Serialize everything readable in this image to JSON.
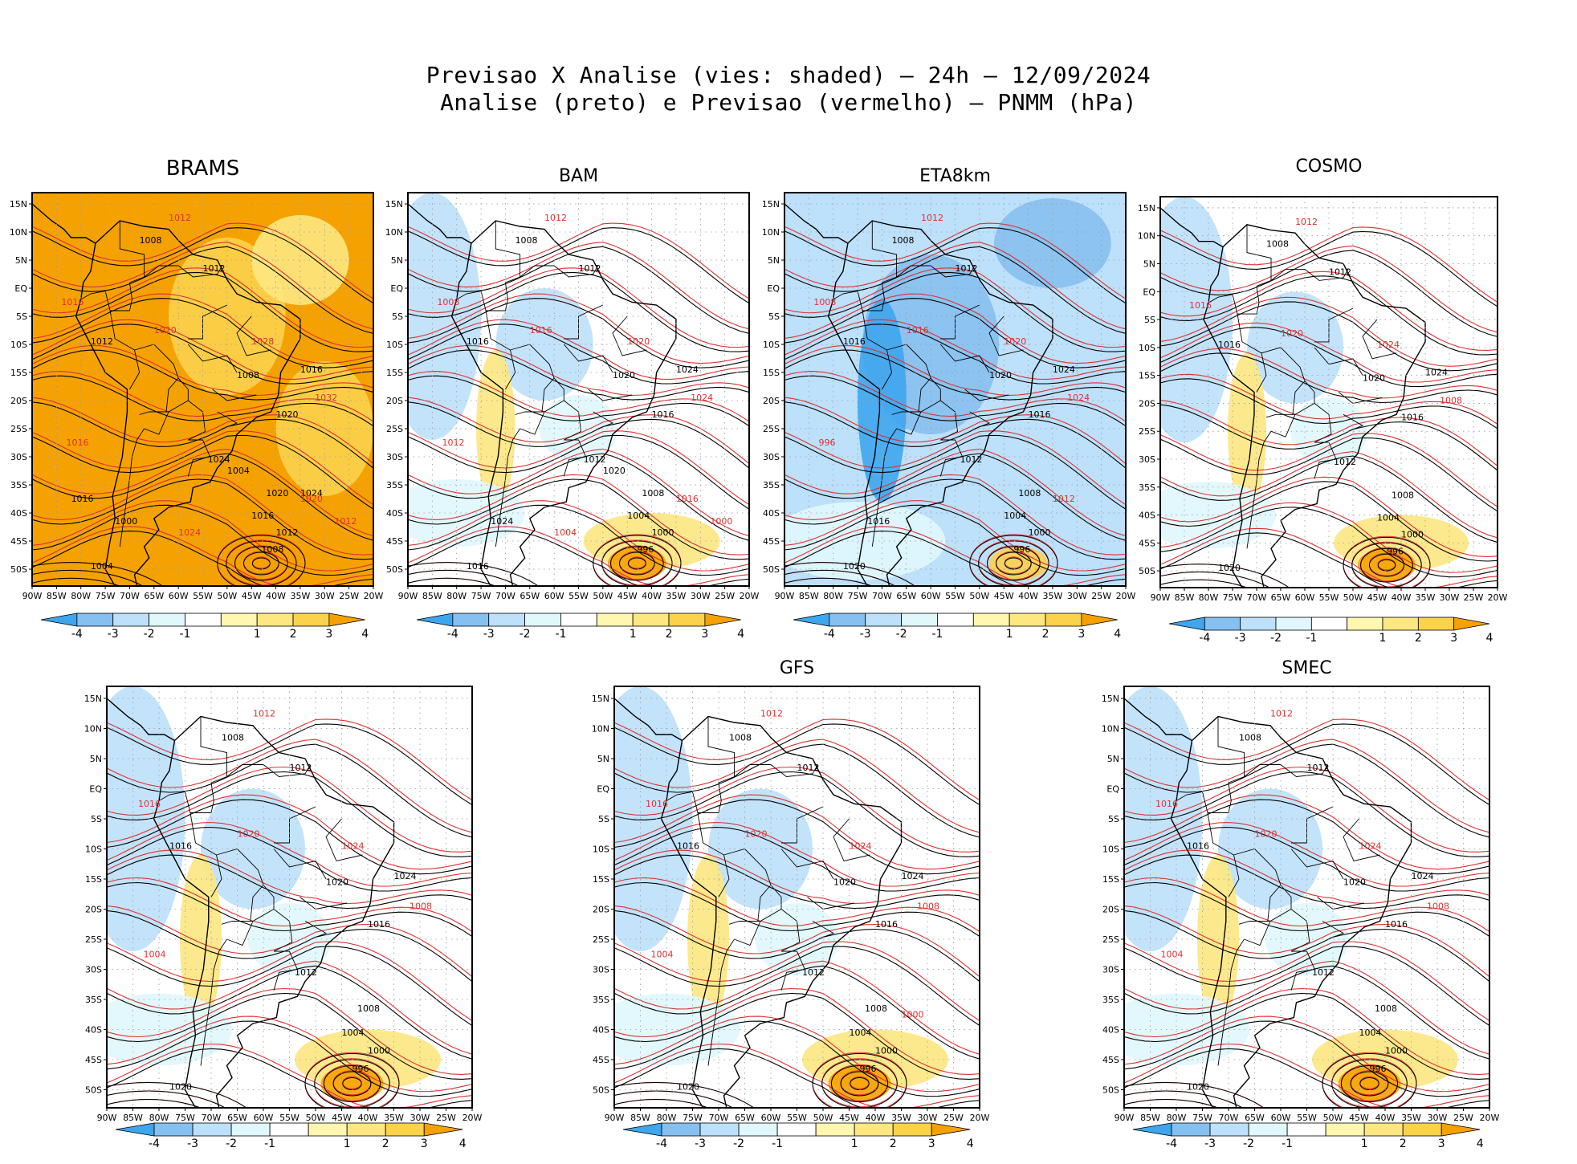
{
  "figure": {
    "title_line1": "Previsao X Analise (vies: shaded) – 24h – 12/09/2024",
    "title_line2": "Analise (preto) e Previsao (vermelho) – PNMM (hPa)"
  },
  "colors": {
    "analysis_contour": "#000000",
    "forecast_contour": "#e03030",
    "bias_neg4": "#3ea6ee",
    "bias_neg3": "#86c0f0",
    "bias_neg2": "#bde0fb",
    "bias_neg1": "#e0f7fc",
    "bias_zero": "#ffffff",
    "bias_pos1": "#fff6b0",
    "bias_pos2": "#fde781",
    "bias_pos3": "#fbd24c",
    "bias_pos4": "#f5a200"
  },
  "axes": {
    "lon_ticks": [
      "90W",
      "85W",
      "80W",
      "75W",
      "70W",
      "65W",
      "60W",
      "55W",
      "50W",
      "45W",
      "40W",
      "35W",
      "30W",
      "25W",
      "20W"
    ],
    "lat_ticks": [
      "15N",
      "10N",
      "5N",
      "EQ",
      "5S",
      "10S",
      "15S",
      "20S",
      "25S",
      "30S",
      "35S",
      "40S",
      "45S",
      "50S"
    ]
  },
  "colorbar": {
    "labels": [
      "-4",
      "-3",
      "-2",
      "-1",
      "1",
      "2",
      "3",
      "4"
    ]
  },
  "panels": [
    {
      "title": "BRAMS",
      "overall_bias": "positive",
      "contour_labels_black": [
        "1008",
        "1012",
        "1012",
        "1008",
        "1016",
        "1020",
        "1024",
        "1020",
        "1016",
        "1012",
        "1008",
        "1004",
        "1000",
        "1004",
        "1016",
        "1024"
      ],
      "contour_labels_red": [
        "1012",
        "1016",
        "1020",
        "1028",
        "1032",
        "1016",
        "1020",
        "1024",
        "1012"
      ]
    },
    {
      "title": "BAM",
      "overall_bias": "mixed",
      "contour_labels_black": [
        "1008",
        "1012",
        "1016",
        "1020",
        "1024",
        "1016",
        "1012",
        "1008",
        "1004",
        "1000",
        "996",
        "1016",
        "1024",
        "1020"
      ],
      "contour_labels_red": [
        "1012",
        "1008",
        "1016",
        "1020",
        "1024",
        "1012",
        "1016",
        "1004",
        "1000"
      ]
    },
    {
      "title": "ETA8km",
      "overall_bias": "negative",
      "contour_labels_black": [
        "1008",
        "1012",
        "1016",
        "1020",
        "1024",
        "1016",
        "1012",
        "1008",
        "1004",
        "1000",
        "996",
        "1020",
        "1016"
      ],
      "contour_labels_red": [
        "1012",
        "1008",
        "1016",
        "1020",
        "1024",
        "996",
        "1012"
      ]
    },
    {
      "title": "COSMO",
      "overall_bias": "mixed",
      "contour_labels_black": [
        "1008",
        "1012",
        "1016",
        "1020",
        "1024",
        "1016",
        "1012",
        "1008",
        "1004",
        "1000",
        "996",
        "1020"
      ],
      "contour_labels_red": [
        "1012",
        "1016",
        "1020",
        "1024",
        "1008"
      ]
    },
    {
      "title": "",
      "overall_bias": "mixed",
      "contour_labels_black": [
        "1008",
        "1012",
        "1016",
        "1020",
        "1024",
        "1016",
        "1012",
        "1008",
        "1004",
        "1000",
        "996",
        "1020"
      ],
      "contour_labels_red": [
        "1012",
        "1016",
        "1020",
        "1024",
        "1008",
        "1004"
      ]
    },
    {
      "title": "GFS",
      "overall_bias": "slightly-negative",
      "contour_labels_black": [
        "1008",
        "1012",
        "1016",
        "1020",
        "1024",
        "1016",
        "1012",
        "1008",
        "1004",
        "1000",
        "996",
        "1020"
      ],
      "contour_labels_red": [
        "1012",
        "1016",
        "1020",
        "1024",
        "1008",
        "1004",
        "1000"
      ]
    },
    {
      "title": "SMEC",
      "overall_bias": "slightly-negative",
      "contour_labels_black": [
        "1008",
        "1012",
        "1016",
        "1020",
        "1024",
        "1016",
        "1012",
        "1008",
        "1004",
        "1000",
        "996",
        "1020"
      ],
      "contour_labels_red": [
        "1012",
        "1016",
        "1020",
        "1024",
        "1008",
        "1004"
      ]
    }
  ]
}
